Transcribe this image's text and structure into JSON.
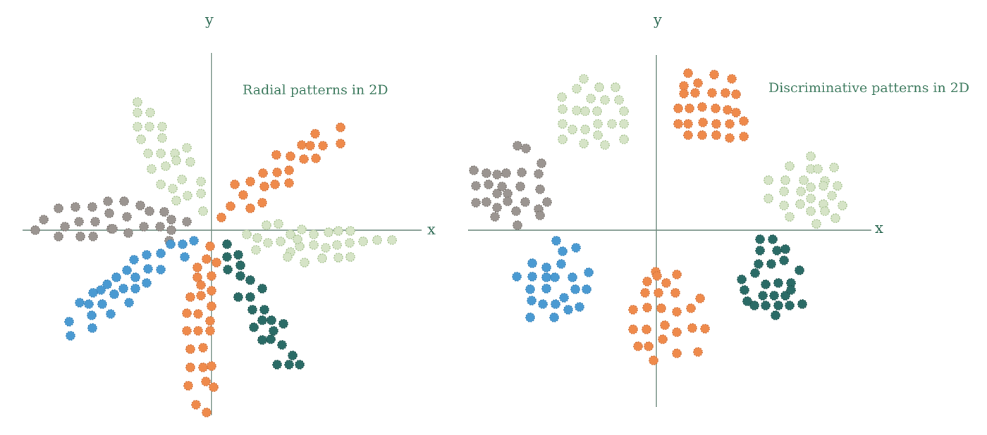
{
  "colors": {
    "gray": "#9b9591",
    "light_green": "#d6e4c7",
    "orange": "#ef8a4b",
    "blue": "#4a9ad2",
    "dark_teal": "#2a6b66",
    "axis": "#6f8a7e",
    "text": "#3d7a5e"
  },
  "panels": [
    {
      "id": "radial",
      "title": "Radial patterns in 2D",
      "x_label": "x",
      "y_label": "y",
      "pattern": "radial",
      "clusters": [
        {
          "color": "gray",
          "arm_angle_deg": 175
        },
        {
          "color": "light_green",
          "arm_angle_deg": 110
        },
        {
          "color": "orange",
          "arm_angle_deg": 35
        },
        {
          "color": "light_green",
          "arm_angle_deg": 355
        },
        {
          "color": "dark_teal",
          "arm_angle_deg": 300
        },
        {
          "color": "orange",
          "arm_angle_deg": 270
        },
        {
          "color": "blue",
          "arm_angle_deg": 215
        }
      ]
    },
    {
      "id": "discriminative",
      "title": "Discriminative patterns in 2D",
      "x_label": "x",
      "y_label": "y",
      "pattern": "discriminative",
      "clusters": [
        {
          "color": "gray",
          "quadrant": "upper-left"
        },
        {
          "color": "light_green",
          "quadrant": "upper-left"
        },
        {
          "color": "orange",
          "quadrant": "upper-right"
        },
        {
          "color": "light_green",
          "quadrant": "upper-right"
        },
        {
          "color": "blue",
          "quadrant": "lower-left"
        },
        {
          "color": "orange",
          "quadrant": "lower-center"
        },
        {
          "color": "dark_teal",
          "quadrant": "lower-right"
        }
      ]
    }
  ]
}
